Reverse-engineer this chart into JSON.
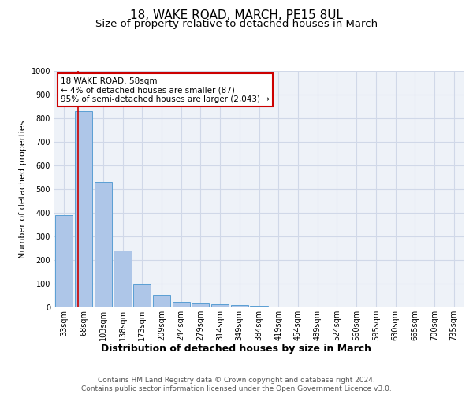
{
  "title": "18, WAKE ROAD, MARCH, PE15 8UL",
  "subtitle": "Size of property relative to detached houses in March",
  "xlabel": "Distribution of detached houses by size in March",
  "ylabel": "Number of detached properties",
  "bar_labels": [
    "33sqm",
    "68sqm",
    "103sqm",
    "138sqm",
    "173sqm",
    "209sqm",
    "244sqm",
    "279sqm",
    "314sqm",
    "349sqm",
    "384sqm",
    "419sqm",
    "454sqm",
    "489sqm",
    "524sqm",
    "560sqm",
    "595sqm",
    "630sqm",
    "665sqm",
    "700sqm",
    "735sqm"
  ],
  "bar_values": [
    390,
    830,
    530,
    240,
    97,
    52,
    22,
    18,
    15,
    10,
    8,
    0,
    0,
    0,
    0,
    0,
    0,
    0,
    0,
    0,
    0
  ],
  "bar_color": "#aec6e8",
  "bar_edge_color": "#5a9fd4",
  "ylim": [
    0,
    1000
  ],
  "yticks": [
    0,
    100,
    200,
    300,
    400,
    500,
    600,
    700,
    800,
    900,
    1000
  ],
  "grid_color": "#d0d8e8",
  "bg_color": "#eef2f8",
  "red_line_x": 0.714,
  "annotation_text": "18 WAKE ROAD: 58sqm\n← 4% of detached houses are smaller (87)\n95% of semi-detached houses are larger (2,043) →",
  "annotation_box_color": "#cc0000",
  "footer_text": "Contains HM Land Registry data © Crown copyright and database right 2024.\nContains public sector information licensed under the Open Government Licence v3.0.",
  "title_fontsize": 11,
  "subtitle_fontsize": 9.5,
  "xlabel_fontsize": 9,
  "ylabel_fontsize": 8,
  "tick_fontsize": 7,
  "annot_fontsize": 7.5,
  "footer_fontsize": 6.5
}
